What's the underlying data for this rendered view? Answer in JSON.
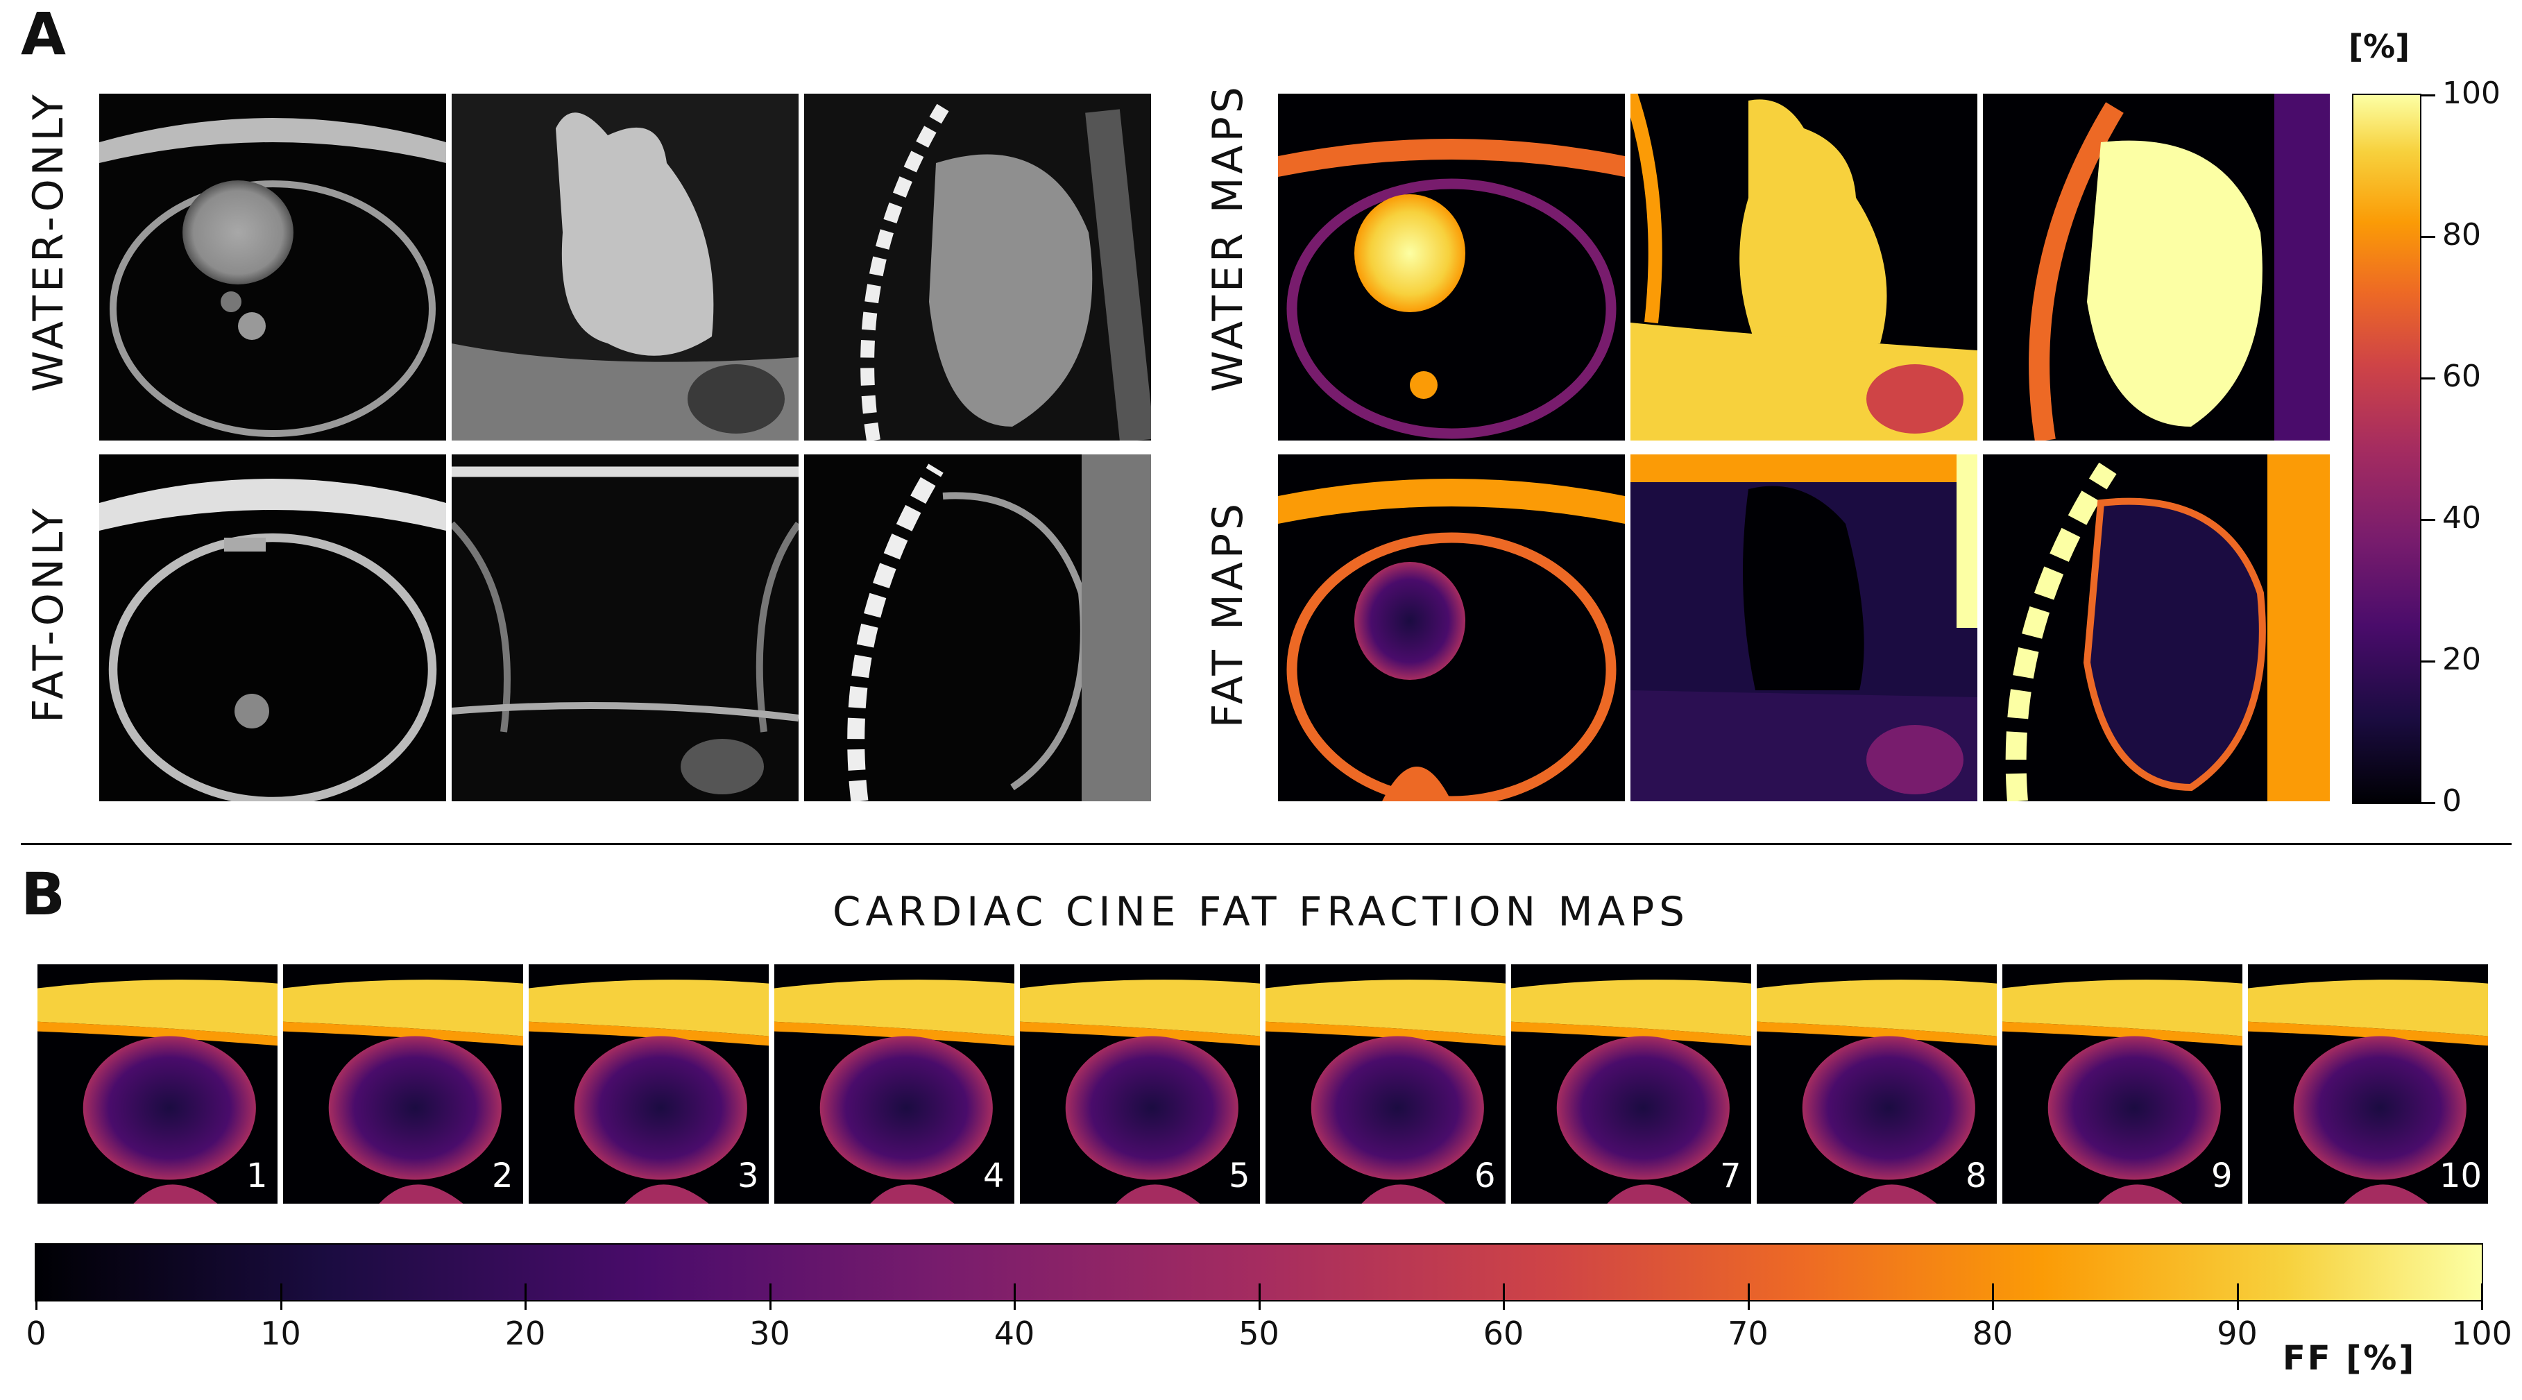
{
  "panel_a": {
    "letter": "A",
    "labels": {
      "water_only": "WATER-ONLY",
      "fat_only": "FAT-ONLY",
      "water_maps": "WATER MAPS",
      "fat_maps": "FAT MAPS"
    },
    "colorbar": {
      "unit": "[%]",
      "ticks": [
        "100",
        "80",
        "60",
        "40",
        "20",
        "0"
      ]
    }
  },
  "panel_b": {
    "letter": "B",
    "title": "CARDIAC CINE FAT FRACTION MAPS",
    "frames": [
      "1",
      "2",
      "3",
      "4",
      "5",
      "6",
      "7",
      "8",
      "9",
      "10"
    ],
    "colorbar": {
      "ticks": [
        "0",
        "10",
        "20",
        "30",
        "40",
        "50",
        "60",
        "70",
        "80",
        "90",
        "100"
      ],
      "unit_label": "FF [%]"
    }
  },
  "colors": {
    "cmap_stops": [
      "#000004",
      "#1b0c41",
      "#4a0c6b",
      "#781c6d",
      "#a52c60",
      "#cf4446",
      "#ed6925",
      "#fb9b06",
      "#f7d13d",
      "#fcffa4"
    ]
  }
}
